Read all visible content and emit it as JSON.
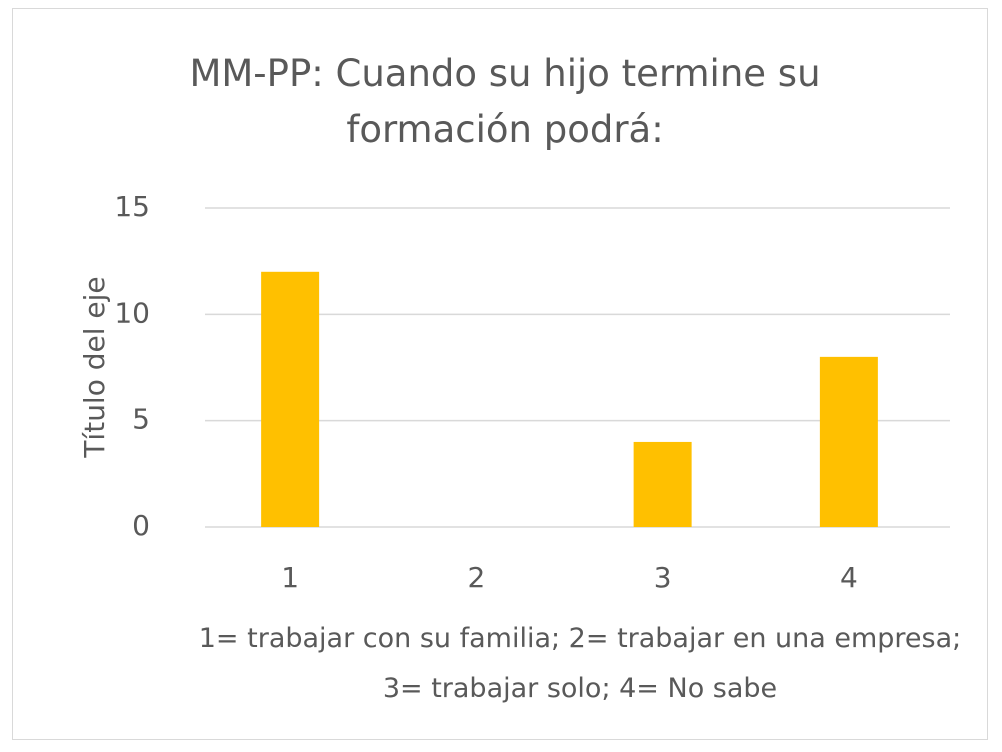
{
  "chart_data": {
    "type": "bar",
    "title": "MM-PP: Cuando su hijo termine su formación podrá:",
    "x_label": "1= trabajar con su familia; 2= trabajar en una empresa; 3= trabajar solo; 4= No sabe",
    "y_label": "Título del eje",
    "categories": [
      "1",
      "2",
      "3",
      "4"
    ],
    "values": [
      12,
      0,
      4,
      8
    ],
    "color": "#ffc000",
    "ylim": [
      0,
      15
    ],
    "yticks": [
      0,
      5,
      10,
      15
    ],
    "grid": true
  }
}
